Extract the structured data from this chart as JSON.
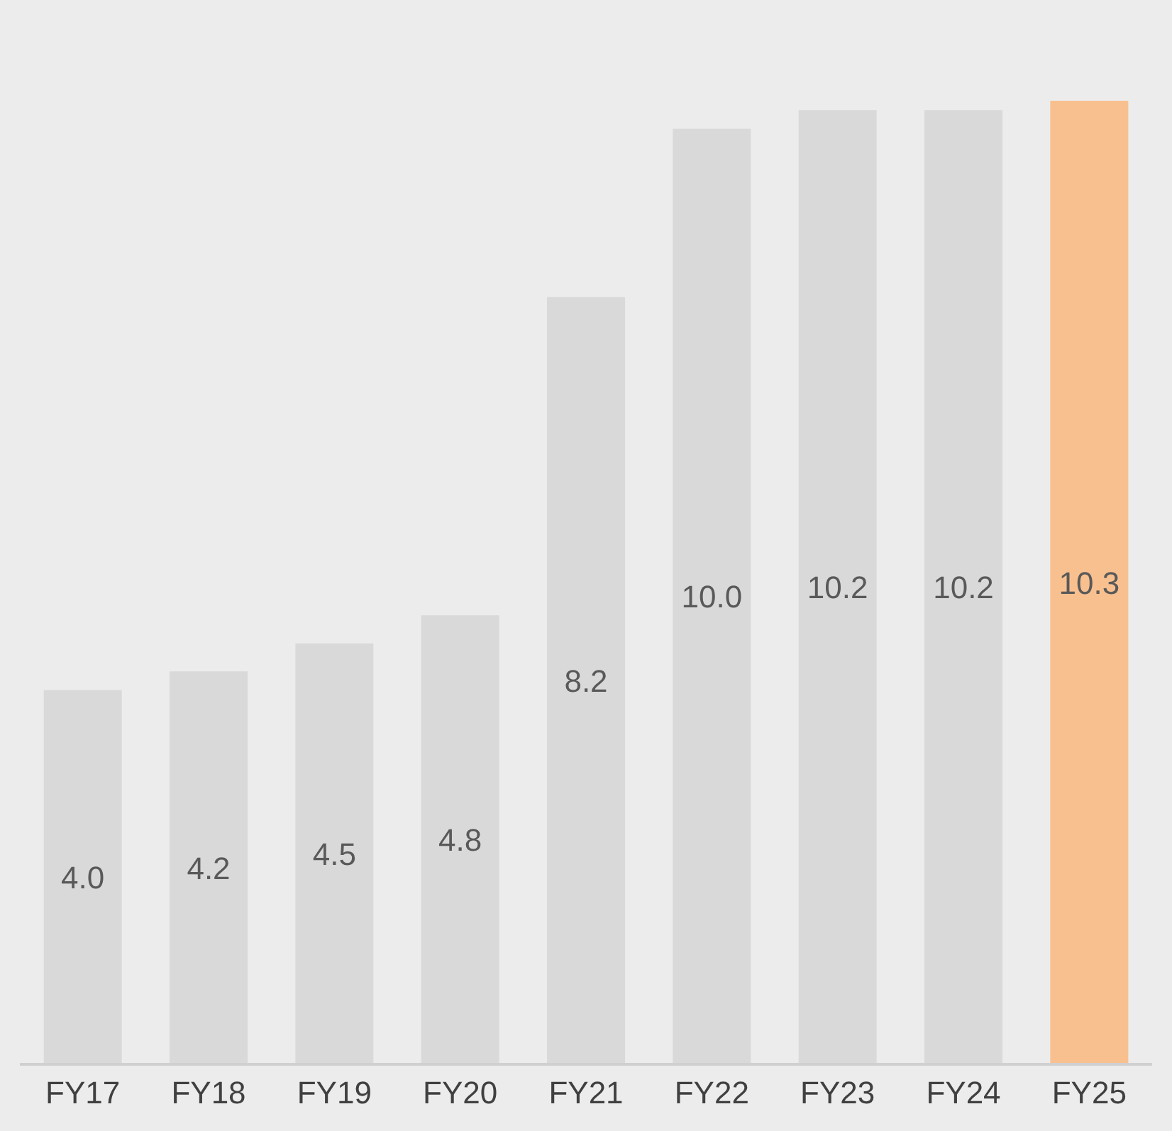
{
  "chart_data": {
    "type": "bar",
    "categories": [
      "FY17",
      "FY18",
      "FY19",
      "FY20",
      "FY21",
      "FY22",
      "FY23",
      "FY24",
      "FY25"
    ],
    "values": [
      4.0,
      4.2,
      4.5,
      4.8,
      8.2,
      10.0,
      10.2,
      10.2,
      10.3
    ],
    "colors": [
      "#d9d9d9",
      "#d9d9d9",
      "#d9d9d9",
      "#d9d9d9",
      "#d9d9d9",
      "#d9d9d9",
      "#d9d9d9",
      "#d9d9d9",
      "#f9c08f"
    ],
    "value_labels": [
      "4.0",
      "4.2",
      "4.5",
      "4.8",
      "8.2",
      "10.0",
      "10.2",
      "10.2",
      "10.3"
    ],
    "grid": false,
    "legend": false
  }
}
